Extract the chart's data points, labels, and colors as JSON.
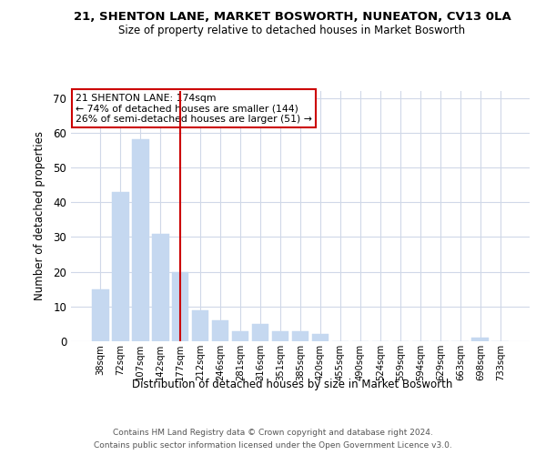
{
  "title1": "21, SHENTON LANE, MARKET BOSWORTH, NUNEATON, CV13 0LA",
  "title2": "Size of property relative to detached houses in Market Bosworth",
  "xlabel": "Distribution of detached houses by size in Market Bosworth",
  "ylabel": "Number of detached properties",
  "categories": [
    "38sqm",
    "72sqm",
    "107sqm",
    "142sqm",
    "177sqm",
    "212sqm",
    "246sqm",
    "281sqm",
    "316sqm",
    "351sqm",
    "385sqm",
    "420sqm",
    "455sqm",
    "490sqm",
    "524sqm",
    "559sqm",
    "594sqm",
    "629sqm",
    "663sqm",
    "698sqm",
    "733sqm"
  ],
  "values": [
    15,
    43,
    58,
    31,
    20,
    9,
    6,
    3,
    5,
    3,
    3,
    2,
    0,
    0,
    0,
    0,
    0,
    0,
    0,
    1,
    0
  ],
  "bar_color": "#c5d8f0",
  "bar_edgecolor": "#c5d8f0",
  "vline_index": 4,
  "vline_color": "#cc0000",
  "ylim": [
    0,
    72
  ],
  "yticks": [
    0,
    10,
    20,
    30,
    40,
    50,
    60,
    70
  ],
  "annotation_line1": "21 SHENTON LANE: 174sqm",
  "annotation_line2": "← 74% of detached houses are smaller (144)",
  "annotation_line3": "26% of semi-detached houses are larger (51) →",
  "annotation_box_edgecolor": "#cc0000",
  "footnote1": "Contains HM Land Registry data © Crown copyright and database right 2024.",
  "footnote2": "Contains public sector information licensed under the Open Government Licence v3.0.",
  "background_color": "#ffffff",
  "plot_bg_color": "#ffffff",
  "grid_color": "#d0d8e8"
}
